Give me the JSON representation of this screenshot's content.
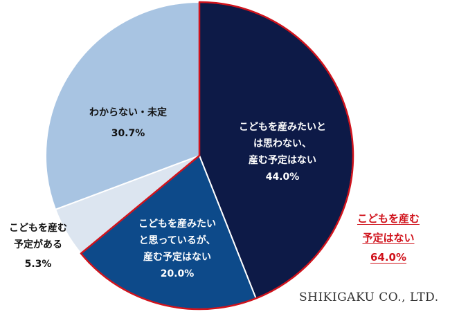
{
  "chart_data": {
    "type": "pie",
    "slices": [
      {
        "label": "こどもを産みたいとは思わない、産む予定はない",
        "value": 44.0,
        "display": "44.0%",
        "color": "#0d1a47"
      },
      {
        "label": "こどもを産みたいと思っているが、産む予定はない",
        "value": 20.0,
        "display": "20.0%",
        "color": "#0d4a8a"
      },
      {
        "label": "こどもを産む予定がある",
        "value": 5.3,
        "display": "5.3%",
        "color": "#dce5f0"
      },
      {
        "label": "わからない・未定",
        "value": 30.7,
        "display": "30.7%",
        "color": "#a8c4e2"
      }
    ],
    "start_angle": "top, clockwise",
    "highlight_outline_color": "#d0121b",
    "callout": {
      "lines": [
        "こどもを産む",
        "予定はない"
      ],
      "value": "64.0%",
      "color": "#d0121b"
    }
  },
  "labels": {
    "s1": {
      "l1": "こどもを産みたいと",
      "l2": "は思わない、",
      "l3": "産む予定はない",
      "v": "44.0%"
    },
    "s2": {
      "l1": "こどもを産みたい",
      "l2": "と思っているが、",
      "l3": "産む予定はない",
      "v": "20.0%"
    },
    "s3": {
      "l1": "こどもを産む",
      "l2": "予定がある",
      "v": "5.3%"
    },
    "s4": {
      "l1": "わからない・未定",
      "v": "30.7%"
    }
  },
  "brand": "SHIKIGAKU CO., LTD."
}
